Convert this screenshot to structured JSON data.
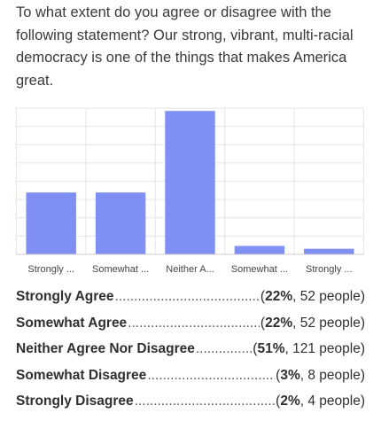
{
  "question": "To what extent do you agree or disagree with the following statement? Our strong, vibrant, multi-racial democracy is one of the things that makes America great.",
  "chart_data": {
    "type": "bar",
    "categories": [
      "Strongly ...",
      "Somewhat ...",
      "Neither A...",
      "Somewhat ...",
      "Strongly ..."
    ],
    "values": [
      22,
      22,
      51,
      3,
      2
    ],
    "ylim": [
      0,
      52
    ],
    "grid": true,
    "bar_color": "#7f8ff4"
  },
  "results": [
    {
      "label": "Strongly Agree",
      "pct": "22%",
      "count": ", 52 people)"
    },
    {
      "label": "Somewhat Agree",
      "pct": "22%",
      "count": ", 52 people)"
    },
    {
      "label": "Neither Agree Nor Disagree",
      "pct": "51%",
      "count": ", 121 people)"
    },
    {
      "label": "Somewhat Disagree",
      "pct": "3%",
      "count": ", 8 people)"
    },
    {
      "label": "Strongly Disagree",
      "pct": "2%",
      "count": ", 4 people)"
    }
  ]
}
